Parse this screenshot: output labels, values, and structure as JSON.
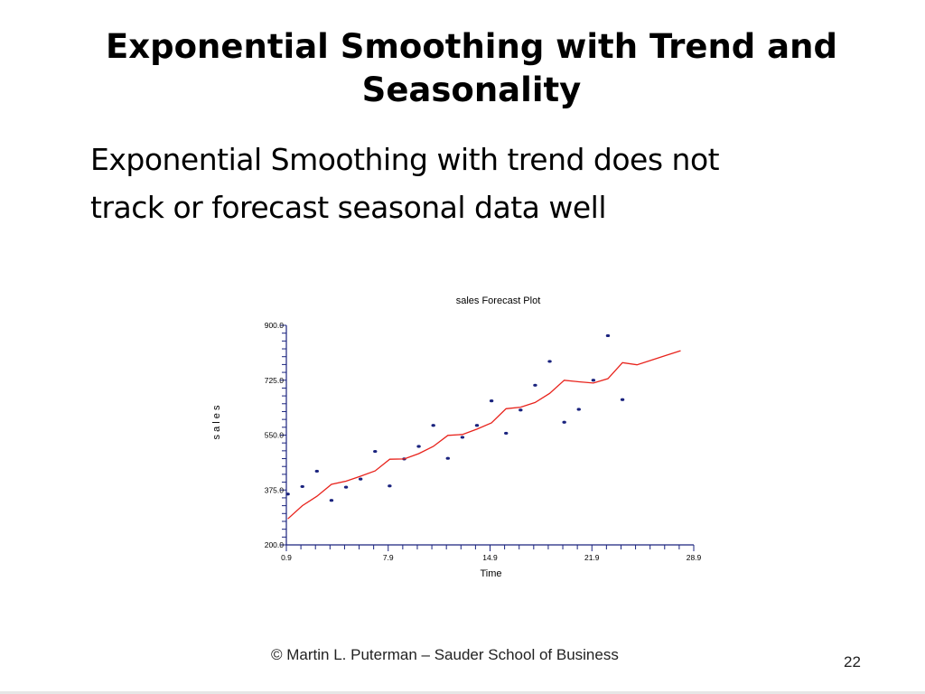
{
  "slide": {
    "title_line1": "Exponential Smoothing with Trend and",
    "title_line2": "Seasonality",
    "subtitle_line1": "Exponential Smoothing with trend does not",
    "subtitle_line2": "track or forecast seasonal data well",
    "footer": "© Martin L. Puterman – Sauder School of Business",
    "page_number": "22"
  },
  "chart_data": {
    "type": "scatter",
    "title": "sales Forecast Plot",
    "xlabel": "Time",
    "ylabel": "s a l e s",
    "xlim": [
      0.9,
      28.9
    ],
    "ylim": [
      200,
      900
    ],
    "xticks": [
      "0.9",
      "7.9",
      "14.9",
      "21.9",
      "28.9"
    ],
    "yticks": [
      "200.0",
      "375.0",
      "550.0",
      "725.0",
      "900.0"
    ],
    "grid": false,
    "series": [
      {
        "style": "points",
        "color": "#1a237e",
        "x": [
          1,
          2,
          3,
          4,
          5,
          6,
          7,
          8,
          9,
          10,
          11,
          12,
          13,
          14,
          15,
          16,
          17,
          18,
          19,
          20,
          21,
          22,
          23,
          24
        ],
        "y": [
          362,
          386,
          435,
          342,
          384,
          410,
          498,
          388,
          474,
          514,
          581,
          476,
          543,
          581,
          659,
          556,
          630,
          709,
          785,
          591,
          632,
          725,
          867,
          663
        ]
      },
      {
        "style": "line",
        "color": "#e8231c",
        "x": [
          1,
          2,
          3,
          4,
          5,
          6,
          7,
          8,
          9,
          10,
          11,
          12,
          13,
          14,
          15,
          16,
          17,
          18,
          19,
          20,
          21,
          22,
          23,
          24,
          25,
          26,
          27,
          28
        ],
        "y": [
          283,
          325,
          355,
          393,
          403,
          419,
          436,
          473,
          474,
          491,
          514,
          549,
          552,
          569,
          589,
          634,
          639,
          654,
          683,
          725,
          720,
          716,
          730,
          781,
          774,
          789,
          804,
          819
        ]
      }
    ]
  }
}
